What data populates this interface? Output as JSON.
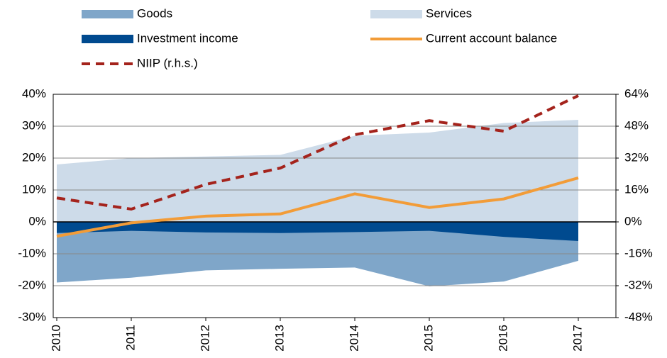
{
  "chart_data": {
    "type": "area-line",
    "categories": [
      "2010",
      "2011",
      "2012",
      "2013",
      "2014",
      "2015",
      "2016",
      "2017"
    ],
    "ylim": [
      -30,
      40
    ],
    "yticks": [
      {
        "value": -30,
        "label": "-30%"
      },
      {
        "value": -20,
        "label": "-20%"
      },
      {
        "value": -10,
        "label": "-10%"
      },
      {
        "value": 0,
        "label": "0%"
      },
      {
        "value": 10,
        "label": "10%"
      },
      {
        "value": 20,
        "label": "20%"
      },
      {
        "value": 30,
        "label": "30%"
      },
      {
        "value": 40,
        "label": "40%"
      }
    ],
    "y2lim": [
      -48,
      64
    ],
    "y2ticks": [
      {
        "value": -48,
        "label": "-48%"
      },
      {
        "value": -32,
        "label": "-32%"
      },
      {
        "value": -16,
        "label": "-16%"
      },
      {
        "value": 0,
        "label": "0%"
      },
      {
        "value": 16,
        "label": "16%"
      },
      {
        "value": 32,
        "label": "32%"
      },
      {
        "value": 48,
        "label": "48%"
      },
      {
        "value": 64,
        "label": "64%"
      }
    ],
    "grid": true,
    "series": [
      {
        "name": "Goods",
        "style": "area",
        "color": "#7fa6c9",
        "values": [
          -19,
          -17.5,
          -15.2,
          -14.7,
          -14.3,
          -20.2,
          -18.7,
          -12.2
        ]
      },
      {
        "name": "Services",
        "style": "area",
        "color": "#cddbe9",
        "values": [
          18,
          20,
          20.5,
          21,
          27,
          28,
          31,
          32
        ]
      },
      {
        "name": "Investment income",
        "style": "area",
        "color": "#004a8f",
        "values": [
          -3.5,
          -2.8,
          -3.3,
          -3.5,
          -3.2,
          -2.8,
          -4.7,
          -6
        ]
      },
      {
        "name": "Current account balance",
        "style": "line",
        "color": "#f29c38",
        "values": [
          -4.5,
          -0.3,
          1.8,
          2.5,
          8.8,
          4.5,
          7.2,
          13.8
        ]
      },
      {
        "name": "NIIP (r.h.s.)",
        "style": "line",
        "dash": true,
        "axis": "y2",
        "color": "#a4231c",
        "values": [
          12,
          6.4,
          18.8,
          27,
          43.7,
          50.8,
          45.5,
          63.3
        ]
      }
    ]
  }
}
